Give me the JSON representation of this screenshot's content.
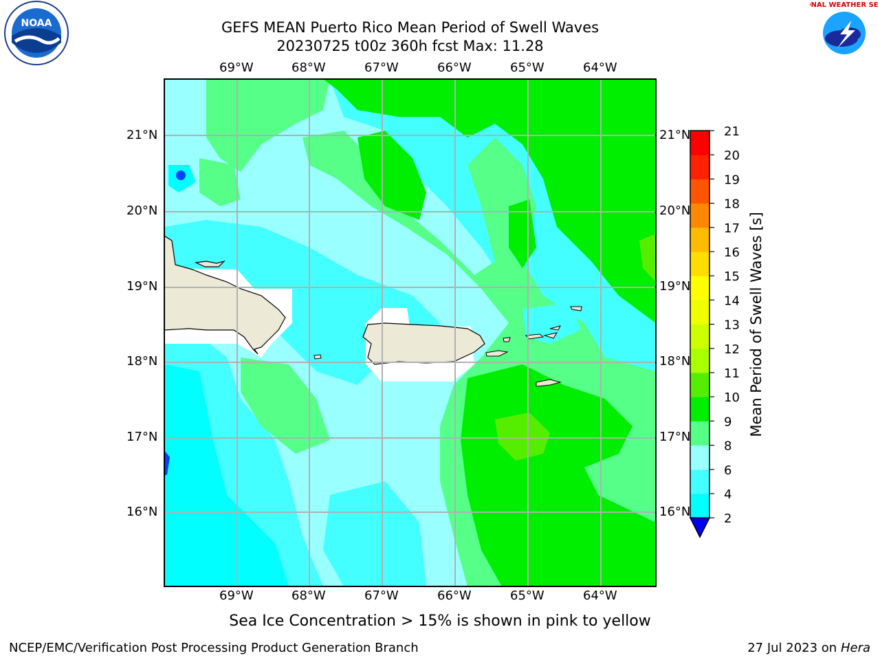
{
  "title": {
    "line1": "GEFS MEAN Puerto Rico Mean Period of Swell Waves",
    "line2": "20230725 t00z 360h fcst   Max: 11.28"
  },
  "map": {
    "lon_labels": [
      "69°W",
      "68°W",
      "67°W",
      "66°W",
      "65°W",
      "64°W"
    ],
    "lat_labels": [
      "21°N",
      "20°N",
      "19°N",
      "18°N",
      "17°N",
      "16°N"
    ]
  },
  "colorbar": {
    "label": "Mean Period of Swell Waves [s]",
    "ticks": [
      "2",
      "4",
      "6",
      "8",
      "9",
      "10",
      "11",
      "12",
      "13",
      "14",
      "15",
      "16",
      "17",
      "18",
      "19",
      "20",
      "21"
    ],
    "colors": [
      "#0044ff",
      "#00ffff",
      "#44ffff",
      "#99ffff",
      "#55ff88",
      "#00ee00",
      "#55ee00",
      "#aaff00",
      "#ccff00",
      "#eeff00",
      "#ffff00",
      "#ffdd00",
      "#ffbb00",
      "#ff8800",
      "#ff5500",
      "#ff2200",
      "#ff0000"
    ],
    "extend_color": "#0000ee"
  },
  "caption": "Sea Ice Concentration > 15% is shown in pink to yellow",
  "footer": {
    "left": "NCEP/EMC/Verification Post Processing Product Generation Branch",
    "date": "27 Jul 2023 on ",
    "machine": "Hera"
  },
  "logos": {
    "noaa": "NOAA",
    "nws": "NATIONAL WEATHER SERVICE"
  }
}
